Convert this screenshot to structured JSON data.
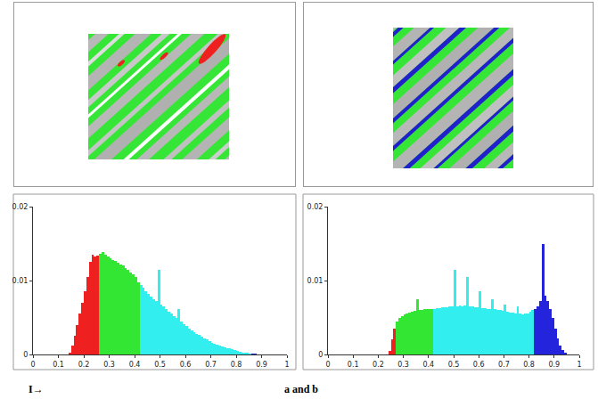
{
  "chart_data": [
    {
      "type": "histogram",
      "bins": [
        0.14,
        0.15,
        0.16,
        0.17,
        0.18,
        0.19,
        0.2,
        0.21,
        0.22,
        0.23,
        0.24,
        0.25,
        0.26,
        0.27,
        0.28,
        0.29,
        0.3,
        0.31,
        0.32,
        0.33,
        0.34,
        0.35,
        0.36,
        0.37,
        0.38,
        0.39,
        0.4,
        0.41,
        0.42,
        0.43,
        0.44,
        0.45,
        0.46,
        0.47,
        0.48,
        0.49,
        0.5,
        0.51,
        0.52,
        0.53,
        0.54,
        0.55,
        0.56,
        0.57,
        0.58,
        0.59,
        0.6,
        0.61,
        0.62,
        0.63,
        0.64,
        0.65,
        0.66,
        0.67,
        0.68,
        0.69,
        0.7,
        0.71,
        0.72,
        0.73,
        0.74,
        0.75,
        0.76,
        0.77,
        0.78,
        0.79,
        0.8,
        0.81,
        0.82,
        0.83,
        0.84,
        0.85,
        0.86,
        0.87,
        0.88
      ],
      "values": [
        0.0003,
        0.0012,
        0.0025,
        0.004,
        0.0055,
        0.007,
        0.0085,
        0.0105,
        0.0125,
        0.0135,
        0.0132,
        0.0134,
        0.0136,
        0.0138,
        0.0135,
        0.0132,
        0.013,
        0.0128,
        0.0126,
        0.0124,
        0.0122,
        0.012,
        0.0117,
        0.0114,
        0.0111,
        0.0108,
        0.0105,
        0.0098,
        0.0094,
        0.009,
        0.0086,
        0.0082,
        0.0078,
        0.0075,
        0.0072,
        0.0115,
        0.0068,
        0.0065,
        0.0062,
        0.0058,
        0.0055,
        0.0052,
        0.0049,
        0.0062,
        0.0044,
        0.0041,
        0.0038,
        0.0035,
        0.0033,
        0.003,
        0.0028,
        0.0026,
        0.0024,
        0.0022,
        0.002,
        0.0018,
        0.0016,
        0.0015,
        0.0013,
        0.0012,
        0.0011,
        0.001,
        0.0009,
        0.0008,
        0.0007,
        0.0006,
        0.0005,
        0.0004,
        0.0003,
        0.0002,
        0.0002,
        0.0001,
        0.0001,
        0.0001
      ],
      "colors": [
        "#ee2020",
        "#ee2020",
        "#ee2020",
        "#ee2020",
        "#ee2020",
        "#ee2020",
        "#ee2020",
        "#ee2020",
        "#ee2020",
        "#ee2020",
        "#ee2020",
        "#ee2020",
        "#33e633",
        "#33e633",
        "#33e633",
        "#33e633",
        "#33e633",
        "#33e633",
        "#33e633",
        "#33e633",
        "#33e633",
        "#33e633",
        "#33e633",
        "#33e633",
        "#33e633",
        "#33e633",
        "#33e633",
        "#33e633",
        "#33eeee",
        "#33eeee",
        "#33eeee",
        "#33eeee",
        "#33eeee",
        "#33eeee",
        "#33eeee",
        "#33eeee",
        "#33eeee",
        "#33eeee",
        "#33eeee",
        "#33eeee",
        "#33eeee",
        "#33eeee",
        "#33eeee",
        "#33eeee",
        "#33eeee",
        "#33eeee",
        "#33eeee",
        "#33eeee",
        "#33eeee",
        "#33eeee",
        "#33eeee",
        "#33eeee",
        "#33eeee",
        "#33eeee",
        "#33eeee",
        "#33eeee",
        "#33eeee",
        "#33eeee",
        "#33eeee",
        "#33eeee",
        "#33eeee",
        "#33eeee",
        "#33eeee",
        "#33eeee",
        "#33eeee",
        "#33eeee",
        "#33eeee",
        "#33eeee",
        "#33eeee",
        "#33eeee",
        "#33eeee",
        "#33eeee",
        "#2424dd",
        "#2424dd"
      ],
      "xlim": [
        0,
        1
      ],
      "ylim": [
        0,
        0.02
      ],
      "xticks": [
        0,
        0.1,
        0.2,
        0.3,
        0.4,
        0.5,
        0.6,
        0.7,
        0.8,
        0.9,
        1
      ],
      "yticks": [
        0,
        0.01,
        0.02
      ],
      "annotations": [
        "I→"
      ]
    },
    {
      "type": "histogram",
      "bins": [
        0.24,
        0.25,
        0.26,
        0.27,
        0.28,
        0.29,
        0.3,
        0.31,
        0.32,
        0.33,
        0.34,
        0.35,
        0.36,
        0.37,
        0.38,
        0.39,
        0.4,
        0.41,
        0.42,
        0.43,
        0.44,
        0.45,
        0.46,
        0.47,
        0.48,
        0.49,
        0.5,
        0.51,
        0.52,
        0.53,
        0.54,
        0.55,
        0.56,
        0.57,
        0.58,
        0.59,
        0.6,
        0.61,
        0.62,
        0.63,
        0.64,
        0.65,
        0.66,
        0.67,
        0.68,
        0.69,
        0.7,
        0.71,
        0.72,
        0.73,
        0.74,
        0.75,
        0.76,
        0.77,
        0.78,
        0.79,
        0.8,
        0.81,
        0.82,
        0.83,
        0.84,
        0.85,
        0.86,
        0.87,
        0.88,
        0.89,
        0.9,
        0.91,
        0.92,
        0.93,
        0.94,
        0.95
      ],
      "values": [
        0.0005,
        0.002,
        0.0035,
        0.0045,
        0.005,
        0.0052,
        0.0054,
        0.0056,
        0.0057,
        0.0058,
        0.0059,
        0.0075,
        0.006,
        0.006,
        0.0061,
        0.0061,
        0.0062,
        0.0062,
        0.0062,
        0.0063,
        0.0063,
        0.0064,
        0.0064,
        0.0064,
        0.0065,
        0.0065,
        0.0115,
        0.0065,
        0.0066,
        0.0065,
        0.0066,
        0.0105,
        0.0065,
        0.0065,
        0.0064,
        0.0064,
        0.0085,
        0.0063,
        0.0063,
        0.0062,
        0.0062,
        0.0075,
        0.0061,
        0.006,
        0.006,
        0.0059,
        0.0068,
        0.0058,
        0.0057,
        0.0057,
        0.0056,
        0.0065,
        0.0055,
        0.0054,
        0.0055,
        0.0056,
        0.0058,
        0.006,
        0.0062,
        0.0065,
        0.0072,
        0.015,
        0.008,
        0.0072,
        0.0062,
        0.005,
        0.0035,
        0.0022,
        0.0012,
        0.0006,
        0.0002
      ],
      "colors": [
        "#ee2020",
        "#ee2020",
        "#ee2020",
        "#33e633",
        "#33e633",
        "#33e633",
        "#33e633",
        "#33e633",
        "#33e633",
        "#33e633",
        "#33e633",
        "#33e633",
        "#33e633",
        "#33e633",
        "#33e633",
        "#33e633",
        "#33e633",
        "#33e633",
        "#33eeee",
        "#33eeee",
        "#33eeee",
        "#33eeee",
        "#33eeee",
        "#33eeee",
        "#33eeee",
        "#33eeee",
        "#33eeee",
        "#33eeee",
        "#33eeee",
        "#33eeee",
        "#33eeee",
        "#33eeee",
        "#33eeee",
        "#33eeee",
        "#33eeee",
        "#33eeee",
        "#33eeee",
        "#33eeee",
        "#33eeee",
        "#33eeee",
        "#33eeee",
        "#33eeee",
        "#33eeee",
        "#33eeee",
        "#33eeee",
        "#33eeee",
        "#33eeee",
        "#33eeee",
        "#33eeee",
        "#33eeee",
        "#33eeee",
        "#33eeee",
        "#33eeee",
        "#33eeee",
        "#33eeee",
        "#33eeee",
        "#33eeee",
        "#33eeee",
        "#2424dd",
        "#2424dd",
        "#2424dd",
        "#2424dd",
        "#2424dd",
        "#2424dd",
        "#2424dd",
        "#2424dd",
        "#2424dd",
        "#2424dd",
        "#2424dd",
        "#2424dd",
        "#2424dd"
      ],
      "xlim": [
        0,
        1
      ],
      "ylim": [
        0,
        0.02
      ],
      "xticks": [
        0,
        0.1,
        0.2,
        0.3,
        0.4,
        0.5,
        0.6,
        0.7,
        0.8,
        0.9,
        1
      ],
      "yticks": [
        0,
        0.01,
        0.02
      ],
      "annotations": [
        "a and b"
      ]
    }
  ]
}
